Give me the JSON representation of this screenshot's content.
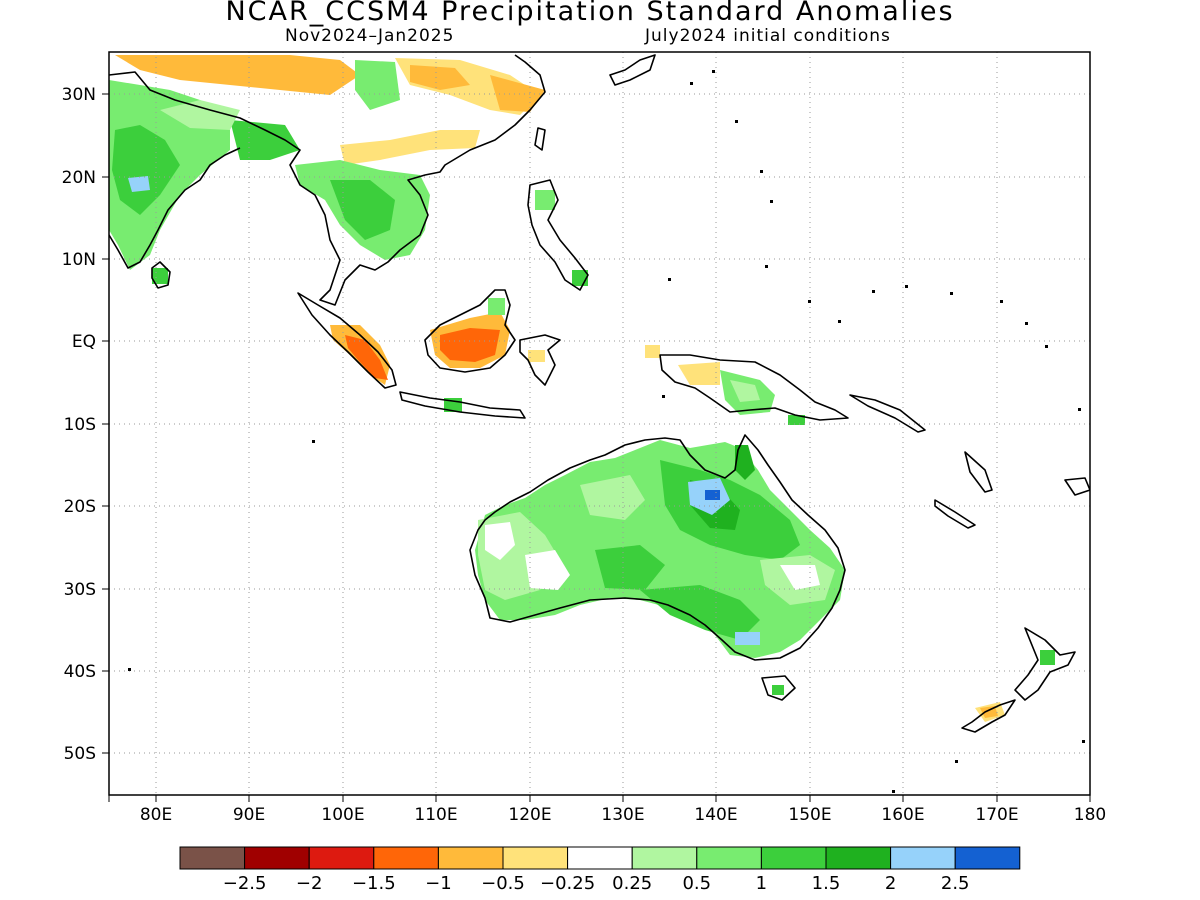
{
  "title": "NCAR_CCSM4 Precipitation Standard Anomalies",
  "period": "Nov2024–Jan2025",
  "initial_conditions": "July2024 initial conditions",
  "map": {
    "lon_range": [
      75,
      180
    ],
    "lat_range": [
      -55,
      35
    ],
    "lon_ticks": [
      80,
      90,
      100,
      110,
      120,
      130,
      140,
      150,
      160,
      170,
      180
    ],
    "lon_labels": [
      "80E",
      "90E",
      "100E",
      "110E",
      "120E",
      "130E",
      "140E",
      "150E",
      "160E",
      "170E",
      "180"
    ],
    "lat_ticks": [
      30,
      20,
      10,
      0,
      -10,
      -20,
      -30,
      -40,
      -50
    ],
    "lat_labels": [
      "30N",
      "20N",
      "10N",
      "EQ",
      "10S",
      "20S",
      "30S",
      "40S",
      "50S"
    ],
    "grid": "dotted"
  },
  "colorbar": {
    "colors": [
      "#7a5248",
      "#a00000",
      "#dd1a10",
      "#ff6608",
      "#ffba3a",
      "#ffe27a",
      "#ffffff",
      "#b0f6a0",
      "#78ec70",
      "#3ccf3c",
      "#1fb11f",
      "#96d2fa",
      "#1461d2"
    ],
    "labels": [
      "−2.5",
      "−2",
      "−1.5",
      "−1",
      "−0.5",
      "−0.25",
      "0.25",
      "0.5",
      "1",
      "1.5",
      "2",
      "2.5"
    ]
  },
  "anomaly_regions": [
    {
      "name": "South Asia",
      "level": "0.5 to 1.5"
    },
    {
      "name": "Indochina",
      "level": "0.5 to 1.5"
    },
    {
      "name": "South China",
      "level": "-1 to -0.25"
    },
    {
      "name": "Borneo",
      "level": "-1.5 to -0.5"
    },
    {
      "name": "Sumatra",
      "level": "-1.5 to -0.5"
    },
    {
      "name": "Northern Australia",
      "level": "2 to 2.5"
    },
    {
      "name": "Australia",
      "level": "0.25 to 1.5"
    },
    {
      "name": "New Guinea",
      "level": "-0.5 to 1"
    },
    {
      "name": "New Zealand",
      "level": "-1 to 1"
    }
  ]
}
